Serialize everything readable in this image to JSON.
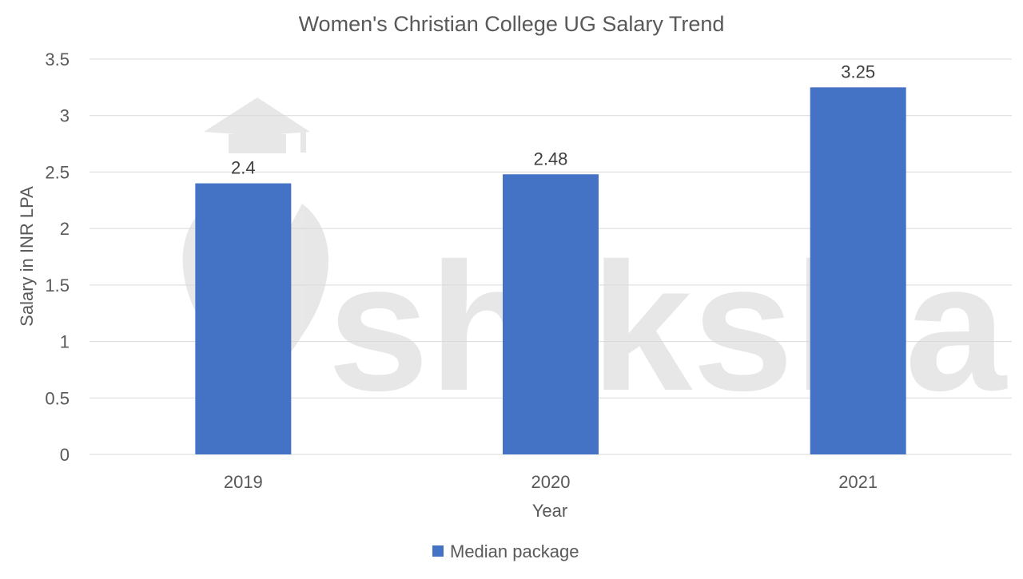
{
  "watermark": "shiksha",
  "chart_data": {
    "type": "bar",
    "title": "Women's Christian College UG Salary Trend",
    "xlabel": "Year",
    "ylabel": "Salary in INR LPA",
    "categories": [
      "2019",
      "2020",
      "2021"
    ],
    "series": [
      {
        "name": "Median package",
        "values": [
          2.4,
          2.48,
          3.25
        ],
        "labels": [
          "2.4",
          "2.48",
          "3.25"
        ],
        "color": "#4472C4"
      }
    ],
    "ylim": [
      0,
      3.5
    ],
    "yticks": [
      "0",
      "0.5",
      "1",
      "1.5",
      "2",
      "2.5",
      "3",
      "3.5"
    ],
    "grid": true,
    "legend": "bottom",
    "colors": {
      "text": "#595959",
      "title": "#595959",
      "grid": "#D9D9D9",
      "label": "#404040"
    }
  }
}
